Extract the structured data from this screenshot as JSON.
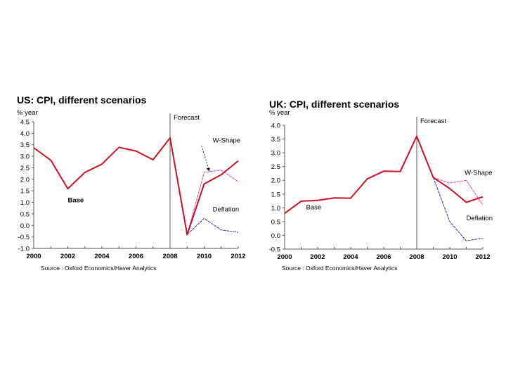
{
  "chart_data": [
    {
      "type": "line",
      "title": "US: CPI, different scenarios",
      "ylabel": "% year",
      "xlabel": "",
      "source": "Source : Oxford Economics/Haver Analytics",
      "x": [
        2000,
        2001,
        2002,
        2003,
        2004,
        2005,
        2006,
        2007,
        2008,
        2009,
        2010,
        2011,
        2012
      ],
      "xlim": [
        2000,
        2012
      ],
      "ylim": [
        -1.0,
        4.5
      ],
      "xticks": [
        "2000",
        "2002",
        "2004",
        "2006",
        "2008",
        "2010",
        "2012"
      ],
      "yticks": [
        "-1.0",
        "-0.5",
        "0.0",
        "0.5",
        "1.0",
        "1.5",
        "2.0",
        "2.5",
        "3.0",
        "3.5",
        "4.0",
        "4.5"
      ],
      "grid": false,
      "forecast_marker": {
        "x": 2008,
        "label": "Forecast"
      },
      "series": [
        {
          "name": "Base",
          "color": "#cc1122",
          "x": [
            2000,
            2001,
            2002,
            2003,
            2004,
            2005,
            2006,
            2007,
            2008,
            2009,
            2010,
            2011,
            2012
          ],
          "values": [
            3.37,
            2.83,
            1.59,
            2.3,
            2.66,
            3.39,
            3.23,
            2.85,
            3.8,
            -0.4,
            1.8,
            2.2,
            2.8
          ]
        },
        {
          "name": "W-Shape",
          "color": "#cc44cc",
          "x": [
            2009,
            2010,
            2011,
            2012
          ],
          "values": [
            -0.4,
            2.3,
            2.4,
            1.9
          ]
        },
        {
          "name": "Deflation",
          "color": "#3333aa",
          "x": [
            2009,
            2010,
            2011,
            2012
          ],
          "values": [
            -0.4,
            0.3,
            -0.2,
            -0.3
          ]
        }
      ],
      "annotations": [
        {
          "text": "Base",
          "x": 2002.0,
          "y": 1.0
        },
        {
          "text": "W-Shape",
          "x": 2010.5,
          "y": 3.6
        },
        {
          "text": "Deflation",
          "x": 2010.5,
          "y": 0.6
        }
      ]
    },
    {
      "type": "line",
      "title": "UK: CPI, different scenarios",
      "ylabel": "% year",
      "xlabel": "",
      "source": "Source : Oxford Economics/Haver Analytics",
      "x": [
        2000,
        2001,
        2002,
        2003,
        2004,
        2005,
        2006,
        2007,
        2008,
        2009,
        2010,
        2011,
        2012
      ],
      "xlim": [
        2000,
        2012
      ],
      "ylim": [
        -0.5,
        4.0
      ],
      "xticks": [
        "2000",
        "2002",
        "2004",
        "2006",
        "2008",
        "2010",
        "2012"
      ],
      "yticks": [
        "-0.5",
        "0.0",
        "0.5",
        "1.0",
        "1.5",
        "2.0",
        "2.5",
        "3.0",
        "3.5",
        "4.0"
      ],
      "grid": false,
      "forecast_marker": {
        "x": 2008,
        "label": "Forecast"
      },
      "series": [
        {
          "name": "Base",
          "color": "#cc1122",
          "x": [
            2000,
            2001,
            2002,
            2003,
            2004,
            2005,
            2006,
            2007,
            2008,
            2009,
            2010,
            2011,
            2012
          ],
          "values": [
            0.8,
            1.24,
            1.27,
            1.36,
            1.35,
            2.05,
            2.33,
            2.32,
            3.6,
            2.1,
            1.7,
            1.2,
            1.4
          ]
        },
        {
          "name": "W-Shape",
          "color": "#cc44cc",
          "x": [
            2009,
            2010,
            2011,
            2012
          ],
          "values": [
            2.1,
            1.9,
            2.0,
            1.1
          ]
        },
        {
          "name": "Deflation",
          "color": "#3333aa",
          "x": [
            2009,
            2010,
            2011,
            2012
          ],
          "values": [
            2.1,
            0.5,
            -0.2,
            -0.1
          ]
        }
      ],
      "annotations": [
        {
          "text": "Base",
          "x": 2001.3,
          "y": 0.95
        },
        {
          "text": "W-Shape",
          "x": 2010.9,
          "y": 2.2
        },
        {
          "text": "Deflation",
          "x": 2011.0,
          "y": 0.55
        }
      ]
    }
  ]
}
